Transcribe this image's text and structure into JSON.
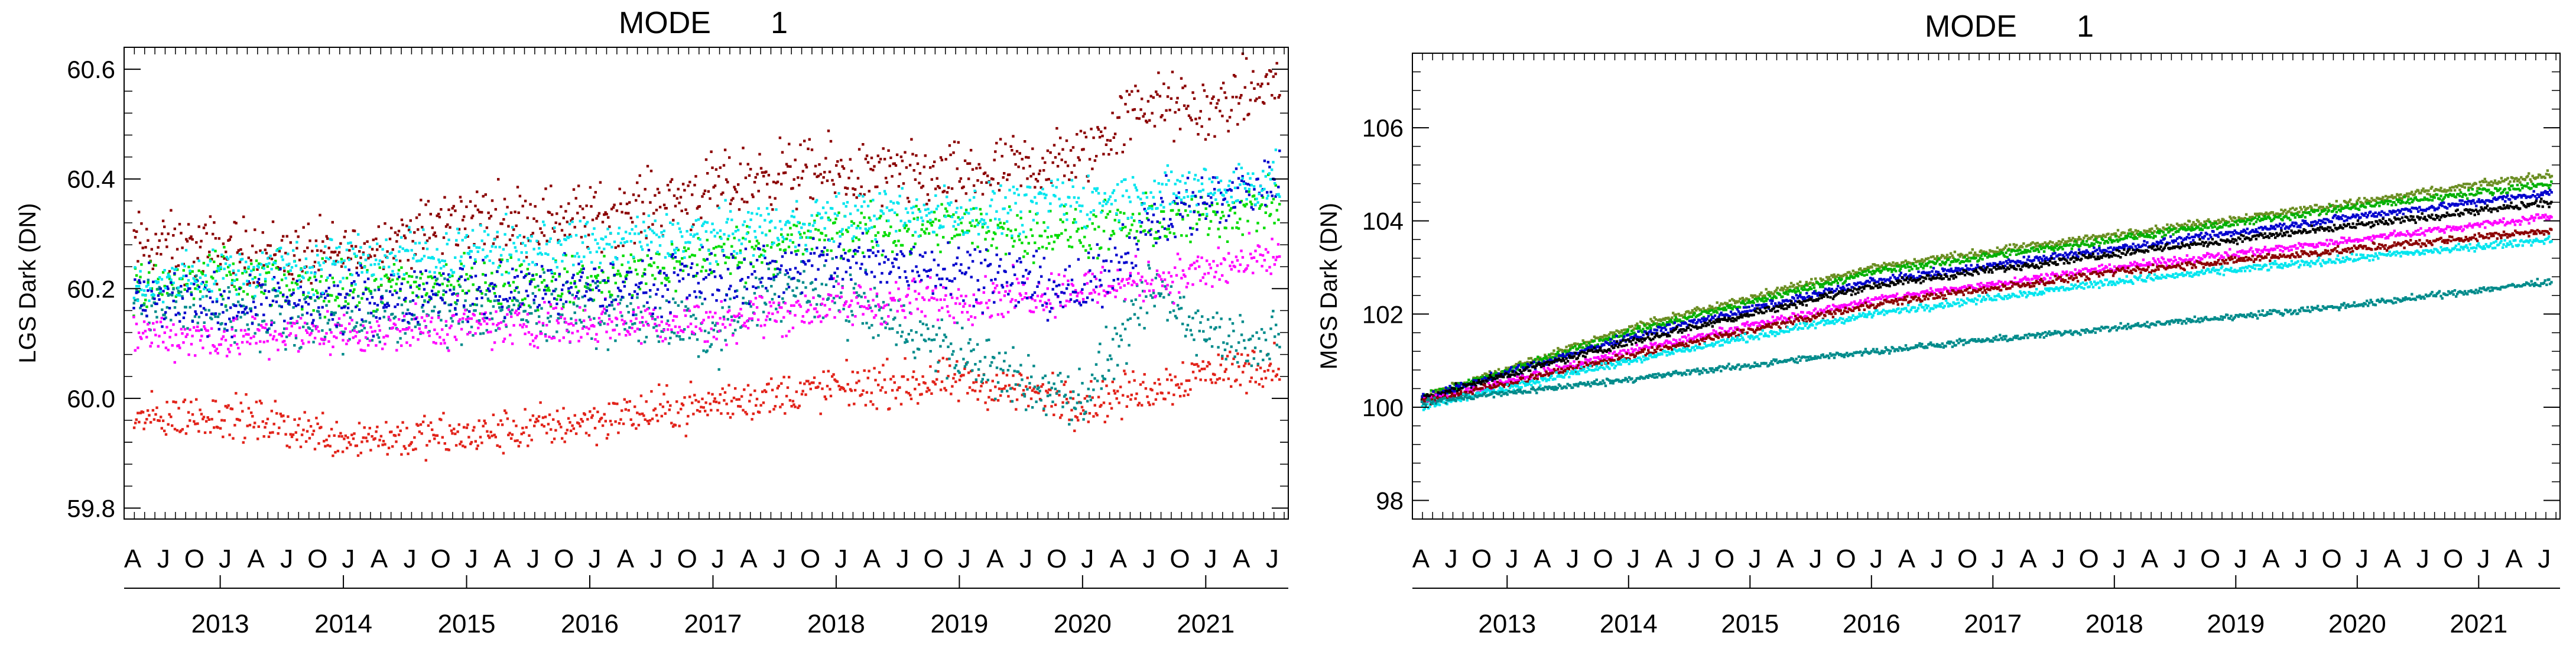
{
  "chart_data": [
    {
      "type": "scatter",
      "title": "MODE       1",
      "ylabel": "LGS Dark (DN)",
      "xlabel": "",
      "xlim": [
        2012.22,
        2021.67
      ],
      "ylim": [
        59.78,
        60.64
      ],
      "yticks": [
        59.8,
        60.0,
        60.2,
        60.4,
        60.6
      ],
      "ytick_labels": [
        "59.8",
        "60.0",
        "60.2",
        "60.4",
        "60.6"
      ],
      "month_labels": [
        "A",
        "J",
        "O",
        "J",
        "A",
        "J",
        "O",
        "J",
        "A",
        "J",
        "O",
        "J",
        "A",
        "J",
        "O",
        "J",
        "A",
        "J",
        "O",
        "J",
        "A",
        "J",
        "O",
        "J",
        "A",
        "J",
        "O",
        "J",
        "A",
        "J",
        "O",
        "J",
        "A",
        "J",
        "O",
        "J",
        "A",
        "J"
      ],
      "year_labels": [
        "2013",
        "2014",
        "2015",
        "2016",
        "2017",
        "2018",
        "2019",
        "2020",
        "2021"
      ],
      "series": [
        {
          "name": "dark-red",
          "color": "#8b0000",
          "x": [
            2012.3,
            2013,
            2014,
            2015,
            2016,
            2017,
            2017.5,
            2018,
            2019,
            2020,
            2020.5,
            2021,
            2021.6
          ],
          "y": [
            60.28,
            60.27,
            60.26,
            60.33,
            60.33,
            60.38,
            60.41,
            60.41,
            60.4,
            60.44,
            60.54,
            60.52,
            60.58
          ],
          "spread": 0.045
        },
        {
          "name": "red",
          "color": "#e2231a",
          "x": [
            2012.3,
            2013,
            2014,
            2015,
            2016,
            2017,
            2018,
            2019,
            2019.6,
            2020,
            2020.6,
            2021,
            2021.6
          ],
          "y": [
            59.96,
            59.97,
            59.93,
            59.93,
            59.96,
            59.99,
            60.02,
            60.03,
            60.01,
            59.99,
            60.02,
            60.05,
            60.06
          ],
          "spread": 0.03
        },
        {
          "name": "green",
          "color": "#00dc00",
          "x": [
            2012.3,
            2013,
            2014,
            2015,
            2016,
            2017,
            2018,
            2019,
            2020,
            2021,
            2021.6
          ],
          "y": [
            60.2,
            60.22,
            60.2,
            60.21,
            60.21,
            60.26,
            60.3,
            60.31,
            60.3,
            60.33,
            60.35
          ],
          "spread": 0.035
        },
        {
          "name": "teal",
          "color": "#008b8b",
          "x": [
            2012.3,
            2013,
            2014,
            2015,
            2016,
            2017,
            2017.5,
            2018,
            2019,
            2019.6,
            2020,
            2020.6,
            2021,
            2021.6
          ],
          "y": [
            60.17,
            60.16,
            60.14,
            60.16,
            60.16,
            60.12,
            60.2,
            60.19,
            60.08,
            60.02,
            60.0,
            60.2,
            60.12,
            60.1
          ],
          "spread": 0.04
        },
        {
          "name": "magenta",
          "color": "#ff00ff",
          "x": [
            2012.3,
            2013,
            2014,
            2015,
            2016,
            2017,
            2018,
            2019,
            2020,
            2021,
            2021.6
          ],
          "y": [
            60.12,
            60.11,
            60.12,
            60.13,
            60.14,
            60.14,
            60.17,
            60.18,
            60.2,
            60.23,
            60.26
          ],
          "spread": 0.03
        },
        {
          "name": "blue",
          "color": "#0000cd",
          "x": [
            2012.3,
            2013,
            2014,
            2015,
            2016,
            2017,
            2018,
            2019,
            2020,
            2020.6,
            2021,
            2021.6
          ],
          "y": [
            60.18,
            60.17,
            60.18,
            60.2,
            60.2,
            60.22,
            60.25,
            60.24,
            60.19,
            60.33,
            60.36,
            60.4
          ],
          "spread": 0.04
        },
        {
          "name": "cyan",
          "color": "#00e5ee",
          "x": [
            2012.3,
            2013,
            2014,
            2015,
            2016,
            2017,
            2018,
            2019,
            2020,
            2021,
            2021.6
          ],
          "y": [
            60.2,
            60.23,
            60.25,
            60.27,
            60.28,
            60.3,
            60.33,
            60.34,
            60.36,
            60.38,
            60.4
          ],
          "spread": 0.035
        }
      ]
    },
    {
      "type": "scatter",
      "title": "MODE       1",
      "ylabel": "MGS Dark (DN)",
      "xlabel": "",
      "xlim": [
        2012.22,
        2021.67
      ],
      "ylim": [
        97.6,
        107.6
      ],
      "yticks": [
        98,
        100,
        102,
        104,
        106
      ],
      "ytick_labels": [
        "98",
        "100",
        "102",
        "104",
        "106"
      ],
      "month_labels": [
        "A",
        "J",
        "O",
        "J",
        "A",
        "J",
        "O",
        "J",
        "A",
        "J",
        "O",
        "J",
        "A",
        "J",
        "O",
        "J",
        "A",
        "J",
        "O",
        "J",
        "A",
        "J",
        "O",
        "J",
        "A",
        "J",
        "O",
        "J",
        "A",
        "J",
        "O",
        "J",
        "A",
        "J",
        "O",
        "J",
        "A",
        "J"
      ],
      "year_labels": [
        "2013",
        "2014",
        "2015",
        "2016",
        "2017",
        "2018",
        "2019",
        "2020",
        "2021"
      ],
      "series": [
        {
          "name": "olive",
          "color": "#6b8e23",
          "x": [
            2012.3,
            2014,
            2016,
            2018,
            2020,
            2021.6
          ],
          "y": [
            100.2,
            101.7,
            103.0,
            103.7,
            104.4,
            105.0
          ],
          "spread": 0.06
        },
        {
          "name": "green",
          "color": "#00b000",
          "x": [
            2012.3,
            2014,
            2016,
            2018,
            2020,
            2021.6
          ],
          "y": [
            100.2,
            101.6,
            102.9,
            103.6,
            104.3,
            104.8
          ],
          "spread": 0.06
        },
        {
          "name": "blue",
          "color": "#0000cd",
          "x": [
            2012.3,
            2014,
            2016,
            2018,
            2020,
            2021.6
          ],
          "y": [
            100.2,
            101.5,
            102.7,
            103.4,
            104.1,
            104.6
          ],
          "spread": 0.06
        },
        {
          "name": "black",
          "color": "#000000",
          "x": [
            2012.3,
            2014,
            2016,
            2018,
            2020,
            2021.6
          ],
          "y": [
            100.2,
            101.4,
            102.6,
            103.3,
            103.9,
            104.4
          ],
          "spread": 0.06
        },
        {
          "name": "magenta",
          "color": "#ff00ff",
          "x": [
            2012.3,
            2014,
            2016,
            2018,
            2020,
            2021.6
          ],
          "y": [
            100.1,
            101.2,
            102.3,
            103.0,
            103.6,
            104.1
          ],
          "spread": 0.06
        },
        {
          "name": "dark-red",
          "color": "#8b0000",
          "x": [
            2012.3,
            2014,
            2016,
            2018,
            2020,
            2021.6
          ],
          "y": [
            100.1,
            101.1,
            102.2,
            102.9,
            103.4,
            103.8
          ],
          "spread": 0.06
        },
        {
          "name": "cyan",
          "color": "#00e5ee",
          "x": [
            2012.3,
            2014,
            2016,
            2018,
            2020,
            2021.6
          ],
          "y": [
            100.0,
            101.0,
            102.0,
            102.7,
            103.2,
            103.6
          ],
          "spread": 0.06
        },
        {
          "name": "teal",
          "color": "#008b8b",
          "x": [
            2012.3,
            2014,
            2016,
            2018,
            2020,
            2021.6
          ],
          "y": [
            100.1,
            100.6,
            101.2,
            101.7,
            102.2,
            102.7
          ],
          "spread": 0.05
        }
      ]
    }
  ]
}
